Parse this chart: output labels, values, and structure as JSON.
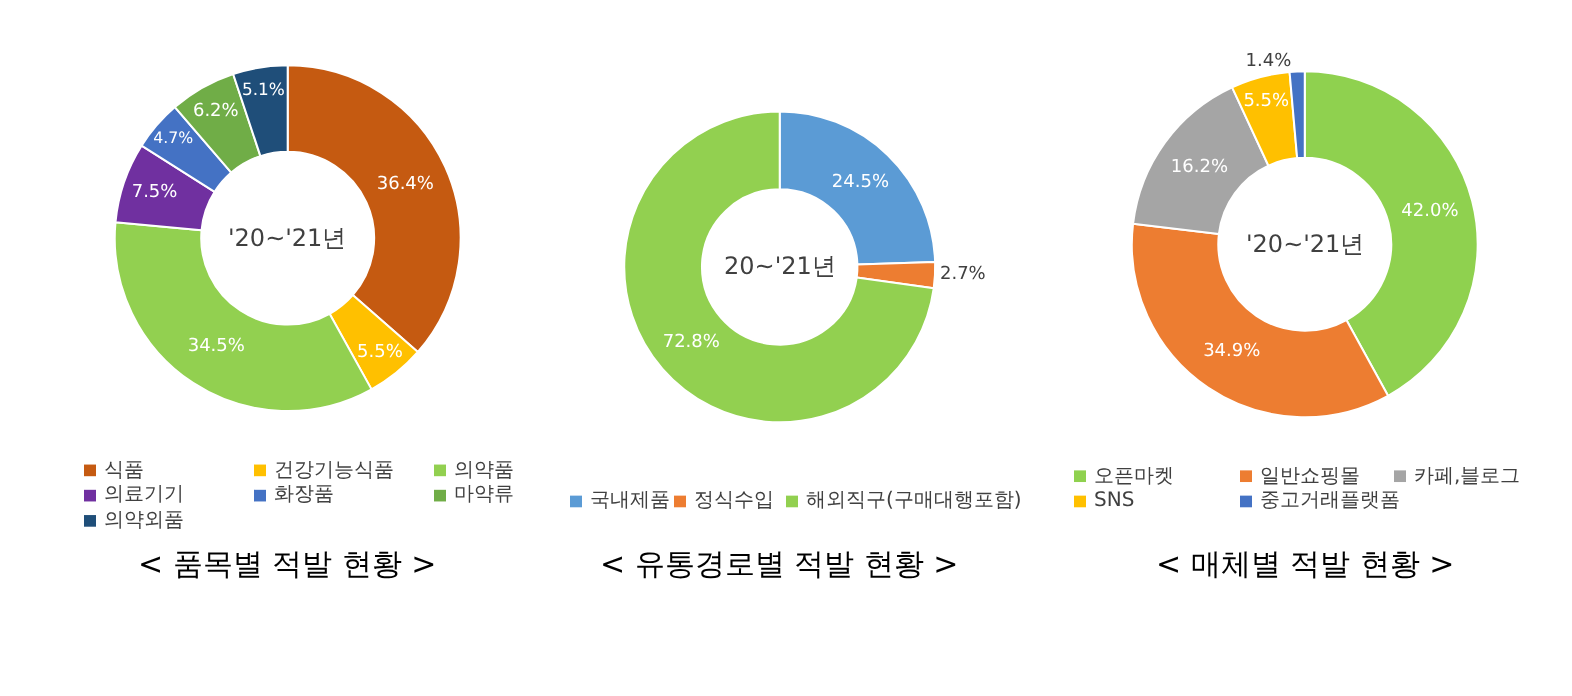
{
  "chart_data": [
    {
      "type": "donut",
      "title": "< 품목별 적발 현황 >",
      "annotations": [
        "'20~'21년"
      ],
      "legend": "bottom",
      "categories": [
        "식품",
        "건강기능식품",
        "의약품",
        "의료기기",
        "화장품",
        "마약류",
        "의약외품"
      ],
      "values": [
        36.4,
        5.5,
        34.5,
        7.5,
        4.7,
        6.2,
        5.1
      ],
      "colors": [
        "#c55a11",
        "#ffc000",
        "#92d050",
        "#7030a0",
        "#4472c4",
        "#70ad47",
        "#1f4e79"
      ],
      "value_labels": [
        "36.4%",
        "5.5%",
        "34.5%",
        "7.5%",
        "4.7%",
        "6.2%",
        "5.1%"
      ]
    },
    {
      "type": "donut",
      "title": "< 유통경로별 적발 현황 >",
      "annotations": [
        "20~'21년"
      ],
      "legend": "bottom",
      "categories": [
        "국내제품",
        "정식수입",
        "해외직구(구매대행포함)"
      ],
      "values": [
        24.5,
        2.7,
        72.8
      ],
      "colors": [
        "#5b9bd5",
        "#ed7d31",
        "#92d050"
      ],
      "value_labels": [
        "24.5%",
        "2.7%",
        "72.8%"
      ]
    },
    {
      "type": "donut",
      "title": "< 매체별 적발 현황 >",
      "annotations": [
        "'20~'21년"
      ],
      "legend": "bottom",
      "categories": [
        "오픈마켓",
        "일반쇼핑몰",
        "카페,블로그",
        "SNS",
        "중고거래플랫폼"
      ],
      "values": [
        42.0,
        34.9,
        16.2,
        5.5,
        1.4
      ],
      "colors": [
        "#8fd14f",
        "#ed7d31",
        "#a5a5a5",
        "#ffc000",
        "#4472c4"
      ],
      "value_labels": [
        "42.0%",
        "34.9%",
        "16.2%",
        "5.5%",
        "1.4%"
      ]
    }
  ]
}
